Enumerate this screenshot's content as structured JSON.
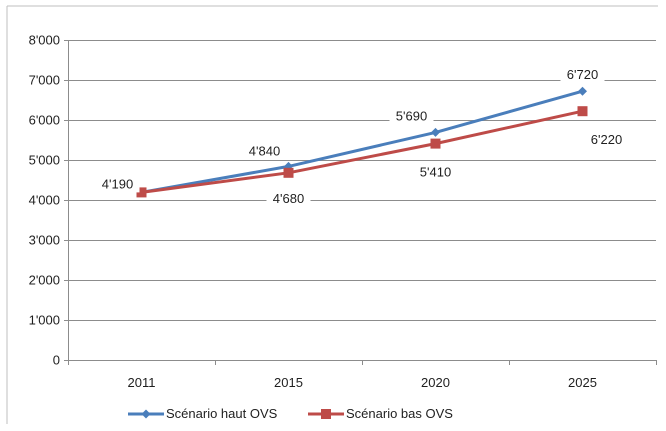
{
  "chart_data": {
    "type": "line",
    "categories": [
      "2011",
      "2015",
      "2020",
      "2025"
    ],
    "y_tick_labels": [
      "0",
      "1'000",
      "2'000",
      "3'000",
      "4'000",
      "5'000",
      "6'000",
      "7'000",
      "8'000"
    ],
    "ylim": [
      0,
      8000
    ],
    "grid": true,
    "legend_position": "bottom",
    "series": [
      {
        "name": "Scénario haut OVS",
        "values": [
          4190,
          4840,
          5690,
          6720
        ],
        "labels": [
          "4'190",
          "4'840",
          "5'690",
          "6'720"
        ],
        "color": "#4a7ebb",
        "marker": "diamond"
      },
      {
        "name": "Scénario bas OVS",
        "values": [
          4190,
          4680,
          5410,
          6220
        ],
        "labels": [
          "4'190",
          "4'680",
          "5'410",
          "6'220"
        ],
        "color": "#be4b48",
        "marker": "square"
      }
    ]
  }
}
